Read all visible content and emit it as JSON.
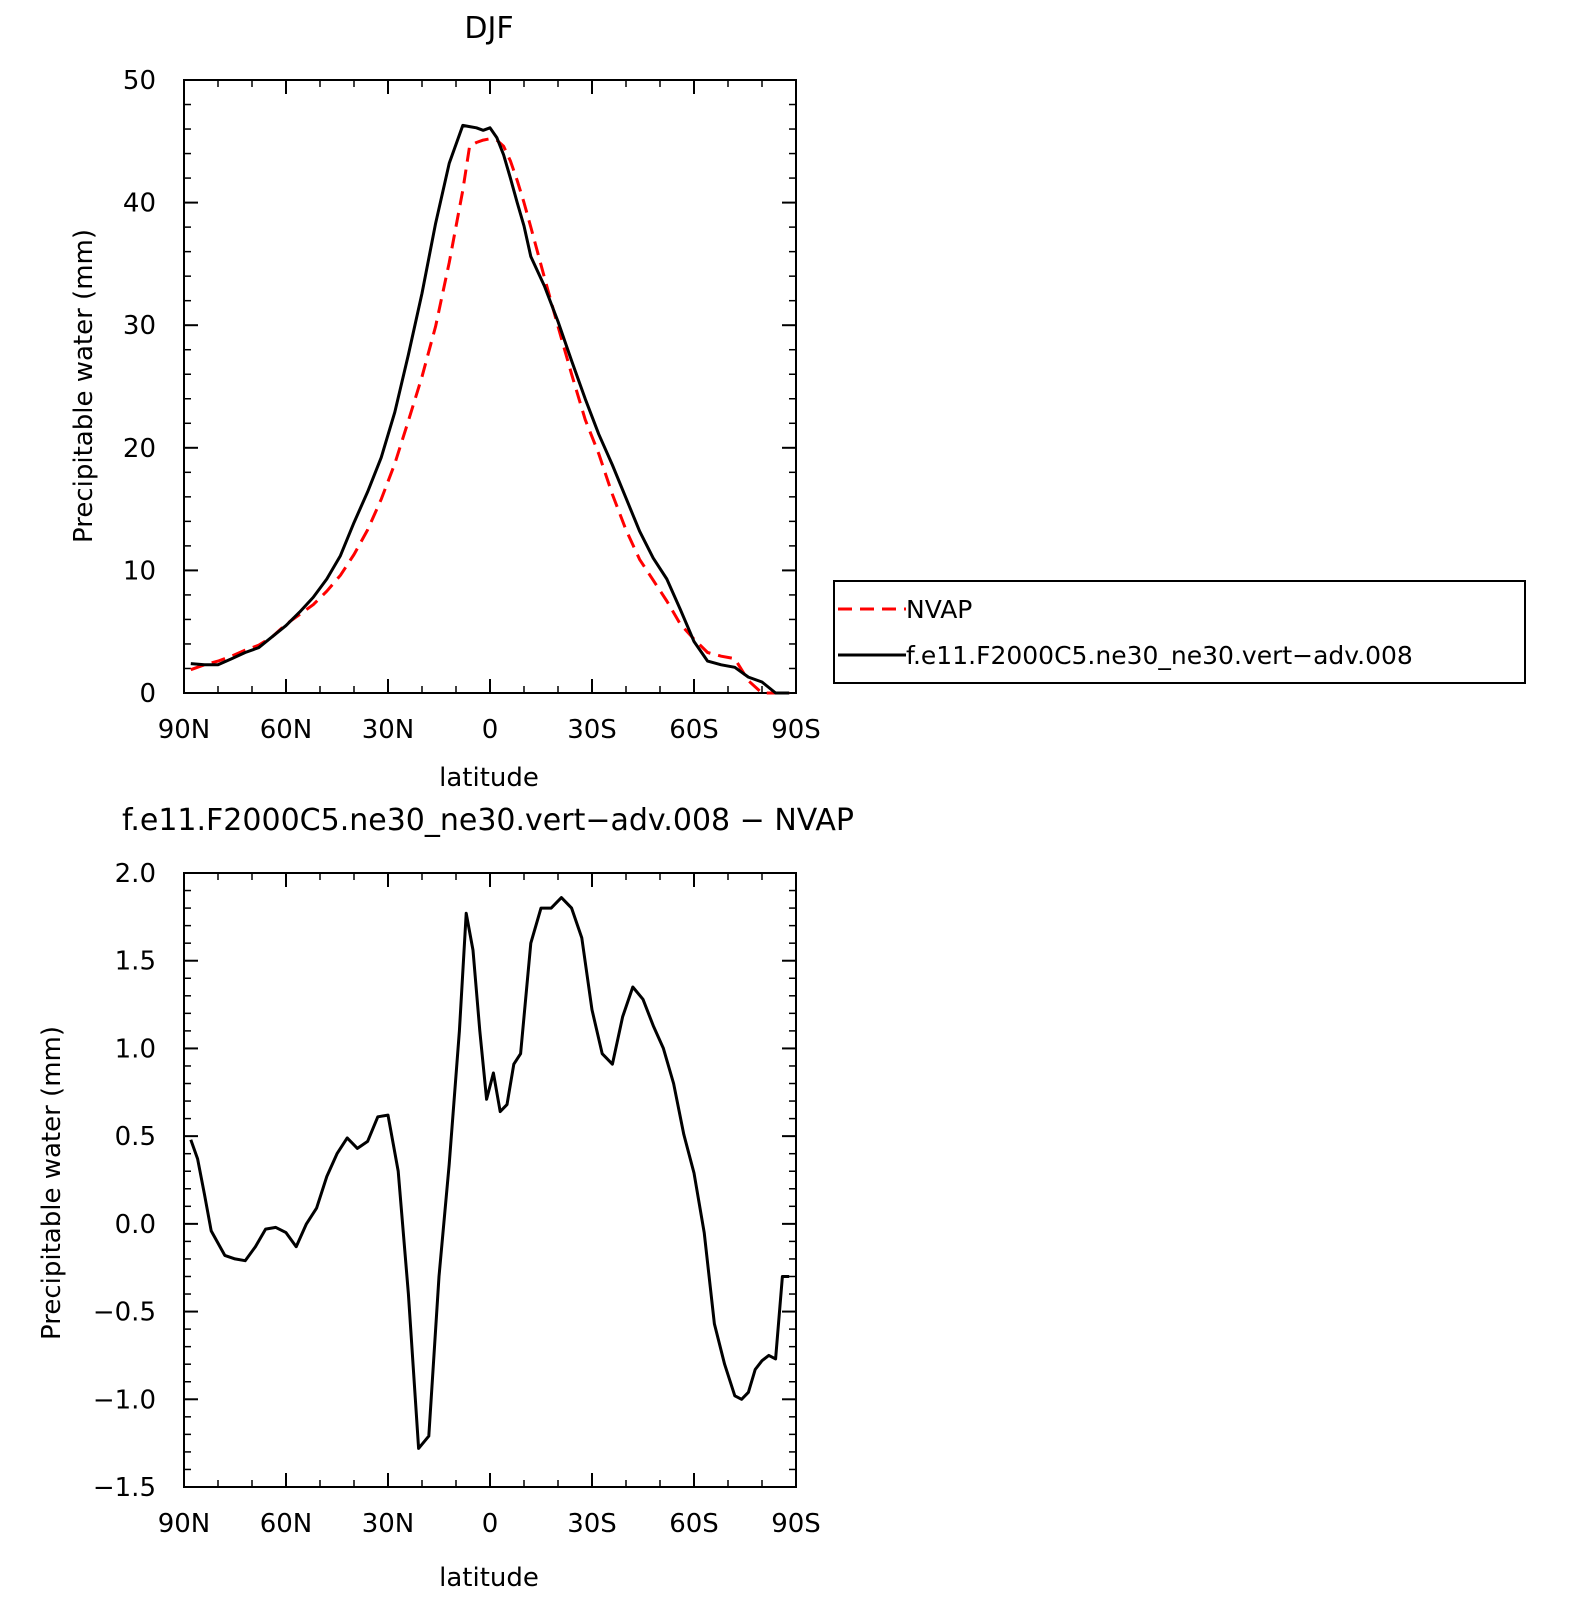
{
  "colors": {
    "nvap": "#ff0000",
    "model": "#000000"
  },
  "chart_data": [
    {
      "type": "line",
      "title": "DJF",
      "xlabel": "latitude",
      "ylabel": "Precipitable water (mm)",
      "xlim": [
        -90,
        90
      ],
      "ylim": [
        0,
        50
      ],
      "x_axis_note": "x in degrees latitude, negative = N, positive = S (axis runs 90N to 90S)",
      "xticks": [
        {
          "value": -90,
          "label": "90N"
        },
        {
          "value": -60,
          "label": "60N"
        },
        {
          "value": -30,
          "label": "30N"
        },
        {
          "value": 0,
          "label": "0"
        },
        {
          "value": 30,
          "label": "30S"
        },
        {
          "value": 60,
          "label": "60S"
        },
        {
          "value": 90,
          "label": "90S"
        }
      ],
      "yticks": [
        {
          "value": 0,
          "label": "0"
        },
        {
          "value": 10,
          "label": "10"
        },
        {
          "value": 20,
          "label": "20"
        },
        {
          "value": 30,
          "label": "30"
        },
        {
          "value": 40,
          "label": "40"
        },
        {
          "value": 50,
          "label": "50"
        }
      ],
      "legend": {
        "placement": "right"
      },
      "series": [
        {
          "name": "NVAP",
          "style": "dashed",
          "color": "#ff0000",
          "x": [
            -88,
            -84,
            -80,
            -76,
            -72,
            -68,
            -64,
            -60,
            -56,
            -52,
            -48,
            -44,
            -40,
            -36,
            -32,
            -28,
            -24,
            -20,
            -16,
            -12,
            -8,
            -6,
            -4,
            -2,
            0,
            2,
            4,
            6,
            8,
            10,
            12,
            16,
            20,
            24,
            28,
            32,
            36,
            40,
            44,
            48,
            52,
            56,
            60,
            64,
            68,
            72,
            76,
            80,
            84,
            88
          ],
          "y": [
            1.9,
            2.3,
            2.6,
            3.0,
            3.5,
            3.9,
            4.6,
            5.6,
            6.4,
            7.2,
            8.3,
            9.6,
            11.3,
            13.3,
            15.8,
            18.7,
            22.2,
            25.8,
            29.9,
            35.1,
            41.0,
            44.6,
            44.9,
            45.1,
            45.2,
            45.1,
            44.6,
            43.4,
            41.8,
            40.0,
            38.0,
            33.9,
            29.9,
            26.0,
            22.3,
            19.5,
            16.2,
            13.3,
            10.9,
            9.2,
            7.5,
            5.6,
            4.4,
            3.3,
            3.0,
            2.8,
            1.0,
            0,
            0,
            0
          ]
        },
        {
          "name": "f.e11.F2000C5.ne30_ne30.vert−adv.008",
          "style": "solid",
          "color": "#000000",
          "x": [
            -88,
            -84,
            -80,
            -76,
            -72,
            -68,
            -64,
            -60,
            -56,
            -52,
            -48,
            -44,
            -40,
            -36,
            -32,
            -28,
            -24,
            -20,
            -16,
            -12,
            -8,
            -6,
            -4,
            -2,
            0,
            2,
            4,
            6,
            8,
            10,
            12,
            16,
            20,
            24,
            28,
            32,
            36,
            40,
            44,
            48,
            52,
            56,
            60,
            64,
            68,
            72,
            76,
            80,
            84,
            88
          ],
          "y": [
            2.4,
            2.3,
            2.3,
            2.8,
            3.3,
            3.7,
            4.6,
            5.5,
            6.6,
            7.8,
            9.3,
            11.2,
            13.9,
            16.4,
            19.2,
            22.9,
            27.6,
            32.6,
            38.3,
            43.2,
            46.3,
            46.2,
            46.1,
            45.9,
            46.1,
            45.3,
            43.9,
            42.0,
            40.0,
            38.1,
            35.6,
            33.2,
            30.3,
            27.1,
            24.0,
            21.1,
            18.6,
            15.9,
            13.2,
            11.0,
            9.3,
            6.8,
            4.2,
            2.6,
            2.3,
            2.1,
            1.3,
            0.9,
            0,
            0
          ]
        }
      ]
    },
    {
      "type": "line",
      "title": "f.e11.F2000C5.ne30_ne30.vert−adv.008 − NVAP",
      "xlabel": "latitude",
      "ylabel": "Precipitable water (mm)",
      "xlim": [
        -90,
        90
      ],
      "ylim": [
        -1.5,
        2.0
      ],
      "xticks": [
        {
          "value": -90,
          "label": "90N"
        },
        {
          "value": -60,
          "label": "60N"
        },
        {
          "value": -30,
          "label": "30N"
        },
        {
          "value": 0,
          "label": "0"
        },
        {
          "value": 30,
          "label": "30S"
        },
        {
          "value": 60,
          "label": "60S"
        },
        {
          "value": 90,
          "label": "90S"
        }
      ],
      "yticks": [
        {
          "value": -1.5,
          "label": "−1.5"
        },
        {
          "value": -1.0,
          "label": "−1.0"
        },
        {
          "value": -0.5,
          "label": "−0.5"
        },
        {
          "value": 0.0,
          "label": "0.0"
        },
        {
          "value": 0.5,
          "label": "0.5"
        },
        {
          "value": 1.0,
          "label": "1.0"
        },
        {
          "value": 1.5,
          "label": "1.5"
        },
        {
          "value": 2.0,
          "label": "2.0"
        }
      ],
      "series": [
        {
          "name": "",
          "style": "solid",
          "color": "#000000",
          "x": [
            -88,
            -86,
            -84,
            -82,
            -78,
            -75,
            -72,
            -69,
            -66,
            -63,
            -60,
            -57,
            -54,
            -51,
            -48,
            -45,
            -42,
            -39,
            -36,
            -33,
            -30,
            -27,
            -24,
            -21,
            -18,
            -15,
            -12,
            -9,
            -7,
            -5,
            -3,
            -1,
            1,
            3,
            5,
            7,
            9,
            12,
            15,
            18,
            21,
            24,
            27,
            30,
            33,
            36,
            39,
            42,
            45,
            48,
            51,
            54,
            57,
            60,
            63,
            66,
            69,
            72,
            74,
            76,
            78,
            80,
            82,
            84,
            86,
            88
          ],
          "y": [
            0.48,
            0.37,
            0.17,
            -0.04,
            -0.18,
            -0.2,
            -0.21,
            -0.13,
            -0.03,
            -0.02,
            -0.05,
            -0.13,
            0.0,
            0.09,
            0.27,
            0.4,
            0.49,
            0.43,
            0.47,
            0.61,
            0.62,
            0.3,
            -0.4,
            -1.28,
            -1.21,
            -0.3,
            0.34,
            1.1,
            1.77,
            1.56,
            1.1,
            0.71,
            0.86,
            0.64,
            0.68,
            0.91,
            0.97,
            1.6,
            1.8,
            1.8,
            1.86,
            1.8,
            1.63,
            1.22,
            0.97,
            0.91,
            1.18,
            1.35,
            1.28,
            1.13,
            1.0,
            0.8,
            0.51,
            0.29,
            -0.05,
            -0.57,
            -0.8,
            -0.98,
            -1.0,
            -0.96,
            -0.83,
            -0.78,
            -0.75,
            -0.77,
            -0.3,
            -0.3
          ]
        }
      ]
    }
  ]
}
